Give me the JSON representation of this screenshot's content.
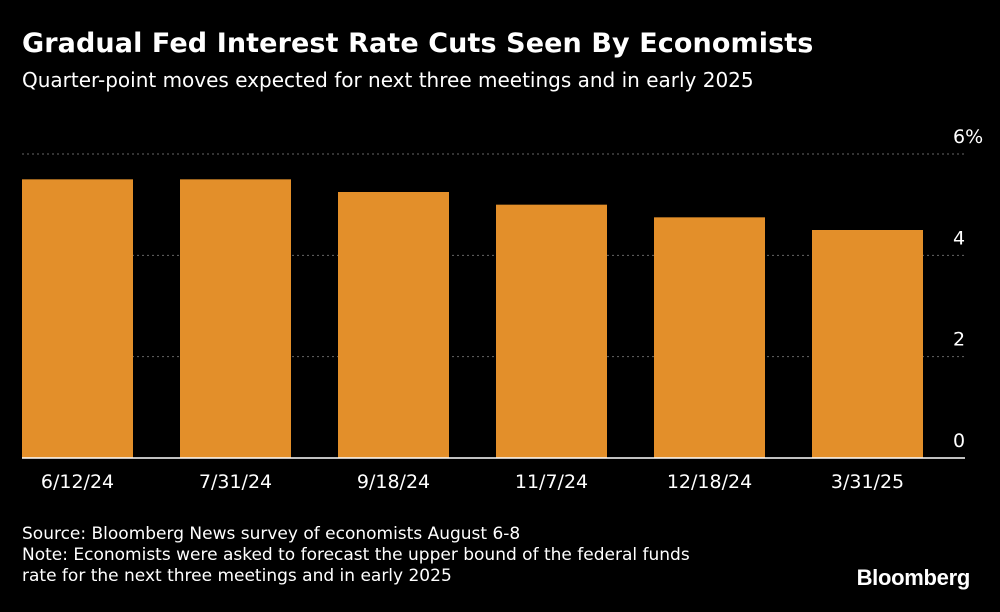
{
  "header": {
    "title": "Gradual Fed Interest Rate Cuts Seen By Economists",
    "subtitle": "Quarter-point moves expected for next three meetings and in early 2025"
  },
  "chart_data": {
    "type": "bar",
    "categories": [
      "6/12/24",
      "7/31/24",
      "9/18/24",
      "11/7/24",
      "12/18/24",
      "3/31/25"
    ],
    "values": [
      5.5,
      5.5,
      5.25,
      5.0,
      4.75,
      4.5
    ],
    "ylim": [
      0,
      6
    ],
    "yticks": [
      0,
      2,
      4,
      6
    ],
    "ytick_labels": [
      "0",
      "2",
      "4",
      "6%"
    ],
    "grid": true,
    "bar_color": "#e38f2a",
    "grid_color": "#666666"
  },
  "footer": {
    "source": "Source: Bloomberg News survey of economists August 6-8",
    "note_line1": "Note: Economists were asked to forecast the upper bound of the federal funds",
    "note_line2": "rate for the next three meetings and in early 2025"
  },
  "brand": {
    "logo": "Bloomberg"
  }
}
